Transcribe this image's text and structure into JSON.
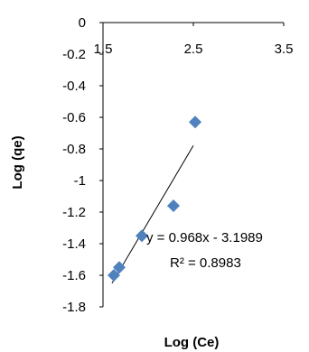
{
  "chart_data": {
    "type": "scatter",
    "xlabel": "Log (Ce)",
    "ylabel": "Log (qe)",
    "xlim": [
      1.5,
      3.5
    ],
    "ylim": [
      -1.8,
      0
    ],
    "xticks": [
      "1.5",
      "2.5",
      "3.5"
    ],
    "yticks": [
      "0",
      "-0.2",
      "-0.4",
      "-0.6",
      "-0.8",
      "-1",
      "-1.2",
      "-1.4",
      "-1.6",
      "-1.8"
    ],
    "grid": false,
    "series": [
      {
        "x": [
          1.62,
          1.68,
          1.93,
          2.28,
          2.52
        ],
        "y": [
          -1.6,
          -1.55,
          -1.35,
          -1.16,
          -0.63
        ],
        "color": "#4f81bd",
        "marker": "diamond"
      }
    ],
    "trendline": {
      "slope": 0.968,
      "intercept": -3.1989,
      "x_range": [
        1.6,
        2.5
      ],
      "color": "#000000"
    },
    "annotations": {
      "equation": "y = 0.968x - 3.1989",
      "r_squared": "R² = 0.8983"
    }
  }
}
